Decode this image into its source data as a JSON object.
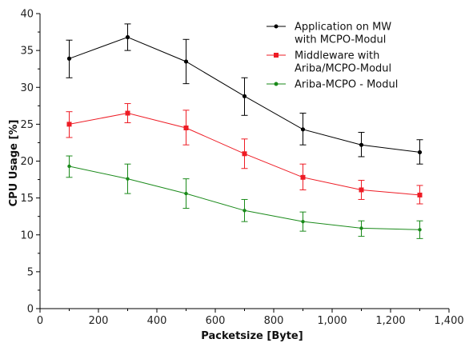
{
  "chart_data": {
    "type": "line",
    "xlabel": "Packetsize [Byte]",
    "ylabel": "CPU Usage [%]",
    "xlim": [
      0,
      1400
    ],
    "ylim": [
      0,
      40
    ],
    "x_ticks": [
      0,
      200,
      400,
      600,
      800,
      1000,
      1200,
      1400
    ],
    "x_tick_labels": [
      "0",
      "200",
      "400",
      "600",
      "800",
      "1,000",
      "1,200",
      "1,400"
    ],
    "y_ticks": [
      0,
      5,
      10,
      15,
      20,
      25,
      30,
      35,
      40
    ],
    "y_tick_labels": [
      "0",
      "5",
      "10",
      "15",
      "20",
      "25",
      "30",
      "35",
      "40"
    ],
    "grid": false,
    "legend_position": "top-right",
    "x": [
      100,
      300,
      500,
      700,
      900,
      1100,
      1300
    ],
    "series": [
      {
        "name_lines": [
          "Application on MW",
          "with MCPO-Modul"
        ],
        "color": "#000000",
        "marker": "circle",
        "values": [
          33.9,
          36.8,
          33.5,
          28.8,
          24.3,
          22.2,
          21.2
        ],
        "err_low": [
          31.3,
          35.0,
          30.5,
          26.2,
          22.2,
          20.6,
          19.6
        ],
        "err_high": [
          36.4,
          38.6,
          36.5,
          31.3,
          26.5,
          23.9,
          22.9
        ]
      },
      {
        "name_lines": [
          "Middleware with",
          "Ariba/MCPO-Modul"
        ],
        "color": "#ee1c25",
        "marker": "square",
        "values": [
          25.0,
          26.5,
          24.5,
          21.0,
          17.8,
          16.1,
          15.4
        ],
        "err_low": [
          23.2,
          25.2,
          22.2,
          19.0,
          16.1,
          14.8,
          14.2
        ],
        "err_high": [
          26.7,
          27.8,
          26.9,
          23.0,
          19.6,
          17.4,
          16.7
        ]
      },
      {
        "name_lines": [
          "Ariba-MCPO - Modul"
        ],
        "color": "#1a8a1a",
        "marker": "circle",
        "values": [
          19.3,
          17.6,
          15.6,
          13.3,
          11.8,
          10.9,
          10.7
        ],
        "err_low": [
          17.8,
          15.6,
          13.6,
          11.8,
          10.5,
          9.8,
          9.5
        ],
        "err_high": [
          20.7,
          19.6,
          17.6,
          14.8,
          13.1,
          11.9,
          11.9
        ]
      }
    ]
  }
}
